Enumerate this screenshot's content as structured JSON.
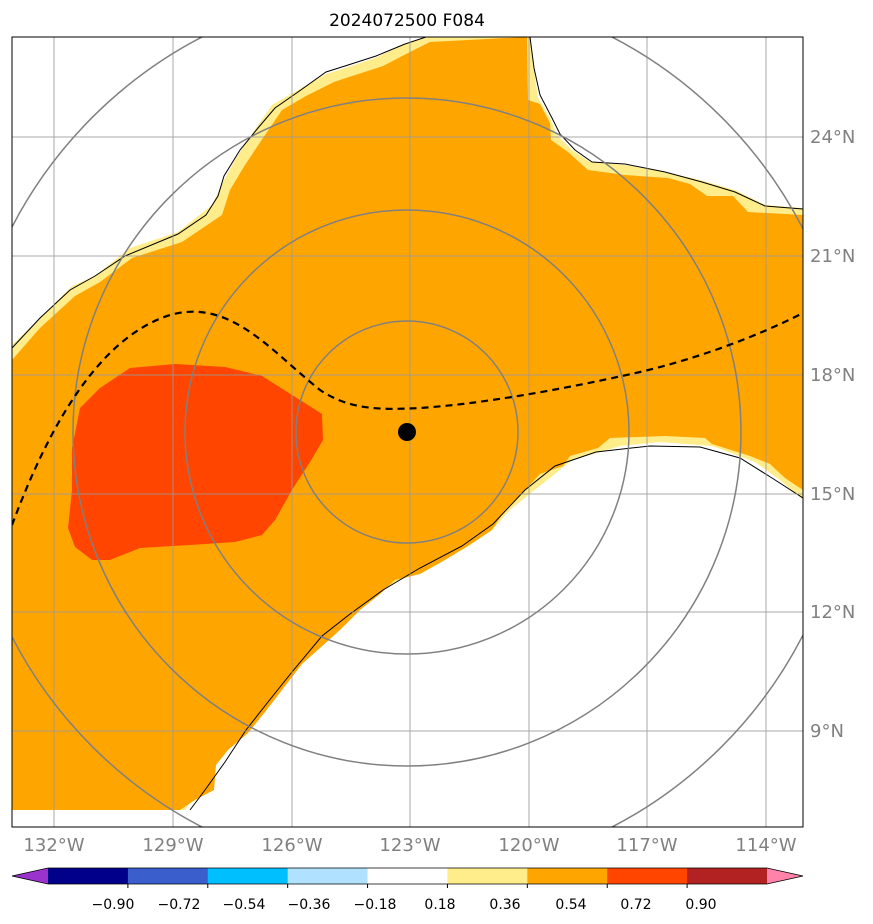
{
  "title": "2024072500 F084",
  "map": {
    "lon_labels": [
      "132°W",
      "129°W",
      "126°W",
      "123°W",
      "120°W",
      "117°W",
      "114°W"
    ],
    "lat_labels": [
      "24°N",
      "21°N",
      "18°N",
      "15°N",
      "12°N",
      "9°N"
    ],
    "lon_range": [
      -133.1,
      -113.1
    ],
    "lat_range": [
      6.6,
      26.6
    ],
    "center": {
      "lon": -123.0,
      "lat": 16.7,
      "label": "storm-center"
    },
    "range_rings": 4
  },
  "colorbar": {
    "labels": [
      "−0.90",
      "−0.72",
      "−0.54",
      "−0.36",
      "−0.18",
      "0.18",
      "0.36",
      "0.54",
      "0.72",
      "0.90"
    ],
    "colors": [
      "#9a32cd",
      "#00008b",
      "#3a5fcd",
      "#00bfff",
      "#b0e2ff",
      "#ffffff",
      "#ffec8b",
      "#ffa500",
      "#ff4500",
      "#b22222",
      "#ff82ab"
    ]
  },
  "colors": {
    "light_yellow": "#ffec8b",
    "orange": "#ffa500",
    "red_orange": "#ff4500",
    "grid": "#808080"
  }
}
